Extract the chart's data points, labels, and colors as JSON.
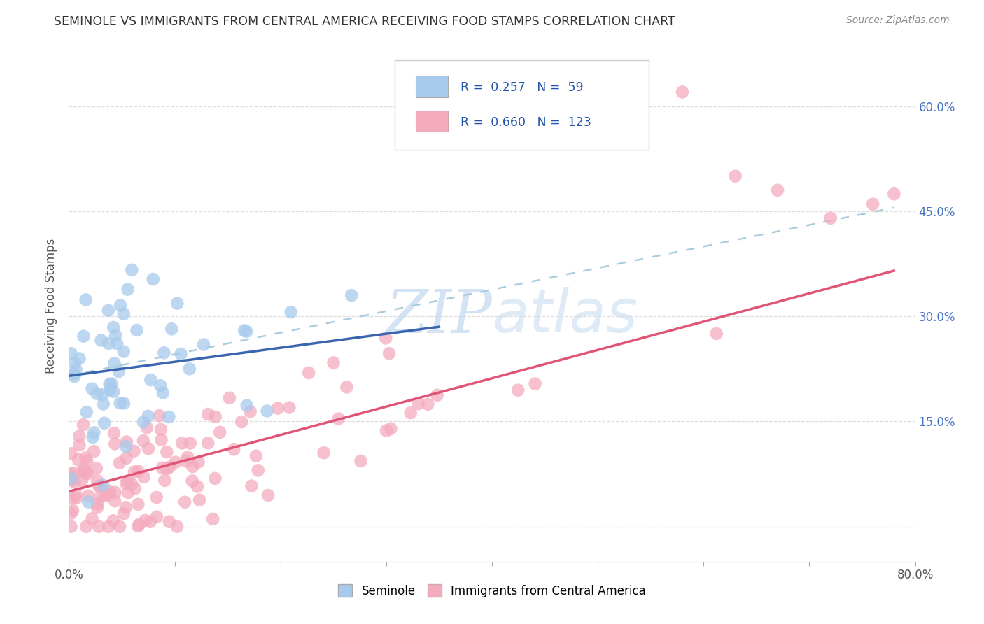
{
  "title": "SEMINOLE VS IMMIGRANTS FROM CENTRAL AMERICA RECEIVING FOOD STAMPS CORRELATION CHART",
  "source_text": "Source: ZipAtlas.com",
  "ylabel": "Receiving Food Stamps",
  "xlim": [
    0.0,
    0.8
  ],
  "ylim": [
    -0.05,
    0.68
  ],
  "ytick_positions": [
    0.0,
    0.15,
    0.3,
    0.45,
    0.6
  ],
  "ytick_labels_right": [
    "60.0%",
    "45.0%",
    "30.0%",
    "15.0%"
  ],
  "ytick_positions_right": [
    0.6,
    0.45,
    0.3,
    0.15
  ],
  "legend_R1": "0.257",
  "legend_N1": "59",
  "legend_R2": "0.660",
  "legend_N2": "123",
  "blue_color": "#A8CAEC",
  "pink_color": "#F4ABBE",
  "blue_line_color": "#3A66B0",
  "pink_line_color": "#E05575",
  "dashed_line_color": "#AACCDD",
  "watermark_color": "#C8DCF0",
  "background_color": "#FFFFFF",
  "grid_color": "#DDDDDD",
  "seminole_label": "Seminole",
  "immigrants_label": "Immigrants from Central America",
  "blue_line_x": [
    0.0,
    0.35
  ],
  "blue_line_y": [
    0.215,
    0.285
  ],
  "pink_line_x": [
    0.0,
    0.78
  ],
  "pink_line_y": [
    0.05,
    0.365
  ],
  "dashed_line_x": [
    0.0,
    0.78
  ],
  "dashed_line_y": [
    0.215,
    0.455
  ]
}
